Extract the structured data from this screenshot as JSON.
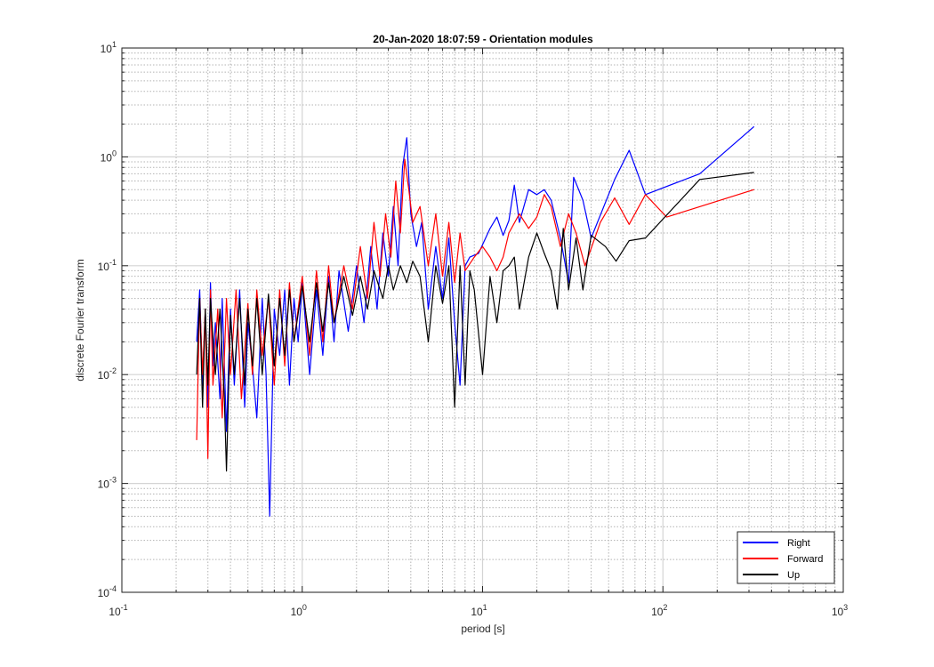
{
  "chart_data": {
    "type": "line",
    "title": "20-Jan-2020 18:07:59 - Orientation modules",
    "xlabel": "period [s]",
    "ylabel": "discrete Fourier transform",
    "xscale": "log",
    "yscale": "log",
    "xlim": [
      0.1,
      1000
    ],
    "ylim": [
      0.0001,
      10
    ],
    "grid": "on (major and minor)",
    "legend_position": "bottom-right",
    "x_ticks": [
      {
        "base": "10",
        "exp": "-1"
      },
      {
        "base": "10",
        "exp": "0"
      },
      {
        "base": "10",
        "exp": "1"
      },
      {
        "base": "10",
        "exp": "2"
      },
      {
        "base": "10",
        "exp": "3"
      }
    ],
    "y_ticks": [
      {
        "base": "10",
        "exp": "-4"
      },
      {
        "base": "10",
        "exp": "-3"
      },
      {
        "base": "10",
        "exp": "-2"
      },
      {
        "base": "10",
        "exp": "-1"
      },
      {
        "base": "10",
        "exp": "0"
      },
      {
        "base": "10",
        "exp": "1"
      }
    ],
    "series": [
      {
        "name": "Right",
        "color": "#0000ff",
        "points": [
          [
            0.26,
            0.02
          ],
          [
            0.27,
            0.06
          ],
          [
            0.28,
            0.008
          ],
          [
            0.29,
            0.04
          ],
          [
            0.3,
            0.005
          ],
          [
            0.31,
            0.07
          ],
          [
            0.32,
            0.012
          ],
          [
            0.33,
            0.03
          ],
          [
            0.35,
            0.006
          ],
          [
            0.36,
            0.05
          ],
          [
            0.38,
            0.003
          ],
          [
            0.4,
            0.04
          ],
          [
            0.42,
            0.008
          ],
          [
            0.45,
            0.06
          ],
          [
            0.48,
            0.005
          ],
          [
            0.5,
            0.03
          ],
          [
            0.53,
            0.012
          ],
          [
            0.56,
            0.004
          ],
          [
            0.6,
            0.05
          ],
          [
            0.63,
            0.01
          ],
          [
            0.66,
            0.0005
          ],
          [
            0.7,
            0.04
          ],
          [
            0.75,
            0.015
          ],
          [
            0.8,
            0.06
          ],
          [
            0.85,
            0.008
          ],
          [
            0.9,
            0.05
          ],
          [
            0.95,
            0.02
          ],
          [
            1.0,
            0.07
          ],
          [
            1.1,
            0.01
          ],
          [
            1.2,
            0.06
          ],
          [
            1.3,
            0.015
          ],
          [
            1.4,
            0.08
          ],
          [
            1.5,
            0.02
          ],
          [
            1.6,
            0.09
          ],
          [
            1.8,
            0.025
          ],
          [
            2.0,
            0.1
          ],
          [
            2.2,
            0.03
          ],
          [
            2.4,
            0.15
          ],
          [
            2.6,
            0.04
          ],
          [
            2.8,
            0.2
          ],
          [
            3.0,
            0.08
          ],
          [
            3.2,
            0.35
          ],
          [
            3.4,
            0.1
          ],
          [
            3.6,
            0.8
          ],
          [
            3.8,
            1.5
          ],
          [
            4.0,
            0.3
          ],
          [
            4.3,
            0.15
          ],
          [
            4.6,
            0.25
          ],
          [
            5.0,
            0.04
          ],
          [
            5.5,
            0.15
          ],
          [
            6.0,
            0.05
          ],
          [
            6.5,
            0.18
          ],
          [
            7.0,
            0.03
          ],
          [
            7.5,
            0.008
          ],
          [
            8.0,
            0.1
          ],
          [
            8.5,
            0.12
          ],
          [
            9.5,
            0.13
          ],
          [
            11,
            0.22
          ],
          [
            12,
            0.28
          ],
          [
            13,
            0.19
          ],
          [
            14,
            0.26
          ],
          [
            15,
            0.55
          ],
          [
            16,
            0.25
          ],
          [
            18,
            0.5
          ],
          [
            20,
            0.45
          ],
          [
            22,
            0.5
          ],
          [
            24,
            0.4
          ],
          [
            27,
            0.18
          ],
          [
            30,
            0.07
          ],
          [
            32,
            0.65
          ],
          [
            36,
            0.4
          ],
          [
            40,
            0.18
          ],
          [
            54,
            0.62
          ],
          [
            65,
            1.15
          ],
          [
            80,
            0.45
          ],
          [
            160,
            0.7
          ],
          [
            320,
            1.9
          ]
        ]
      },
      {
        "name": "Forward",
        "color": "#ff0000",
        "points": [
          [
            0.26,
            0.0025
          ],
          [
            0.27,
            0.05
          ],
          [
            0.28,
            0.01
          ],
          [
            0.29,
            0.04
          ],
          [
            0.3,
            0.0017
          ],
          [
            0.31,
            0.06
          ],
          [
            0.32,
            0.008
          ],
          [
            0.34,
            0.04
          ],
          [
            0.36,
            0.004
          ],
          [
            0.38,
            0.05
          ],
          [
            0.4,
            0.01
          ],
          [
            0.43,
            0.06
          ],
          [
            0.46,
            0.006
          ],
          [
            0.5,
            0.045
          ],
          [
            0.53,
            0.01
          ],
          [
            0.56,
            0.06
          ],
          [
            0.6,
            0.015
          ],
          [
            0.65,
            0.05
          ],
          [
            0.7,
            0.008
          ],
          [
            0.75,
            0.06
          ],
          [
            0.8,
            0.012
          ],
          [
            0.85,
            0.07
          ],
          [
            0.9,
            0.02
          ],
          [
            1.0,
            0.08
          ],
          [
            1.1,
            0.015
          ],
          [
            1.2,
            0.09
          ],
          [
            1.3,
            0.02
          ],
          [
            1.4,
            0.1
          ],
          [
            1.5,
            0.03
          ],
          [
            1.7,
            0.1
          ],
          [
            1.9,
            0.04
          ],
          [
            2.1,
            0.15
          ],
          [
            2.3,
            0.05
          ],
          [
            2.5,
            0.25
          ],
          [
            2.7,
            0.08
          ],
          [
            2.9,
            0.3
          ],
          [
            3.1,
            0.12
          ],
          [
            3.3,
            0.6
          ],
          [
            3.5,
            0.2
          ],
          [
            3.7,
            0.95
          ],
          [
            3.9,
            0.5
          ],
          [
            4.1,
            0.25
          ],
          [
            4.5,
            0.35
          ],
          [
            5.0,
            0.1
          ],
          [
            5.5,
            0.3
          ],
          [
            6.0,
            0.08
          ],
          [
            6.5,
            0.25
          ],
          [
            7.0,
            0.07
          ],
          [
            7.5,
            0.2
          ],
          [
            8.0,
            0.09
          ],
          [
            9,
            0.12
          ],
          [
            10,
            0.15
          ],
          [
            11,
            0.12
          ],
          [
            12,
            0.09
          ],
          [
            13,
            0.12
          ],
          [
            14,
            0.2
          ],
          [
            16,
            0.3
          ],
          [
            18,
            0.22
          ],
          [
            20,
            0.28
          ],
          [
            22,
            0.45
          ],
          [
            24,
            0.35
          ],
          [
            27,
            0.15
          ],
          [
            30,
            0.3
          ],
          [
            33,
            0.2
          ],
          [
            37,
            0.1
          ],
          [
            45,
            0.25
          ],
          [
            54,
            0.42
          ],
          [
            65,
            0.24
          ],
          [
            80,
            0.45
          ],
          [
            105,
            0.28
          ],
          [
            320,
            0.5
          ]
        ]
      },
      {
        "name": "Up",
        "color": "#000000",
        "points": [
          [
            0.26,
            0.01
          ],
          [
            0.27,
            0.05
          ],
          [
            0.28,
            0.005
          ],
          [
            0.29,
            0.04
          ],
          [
            0.3,
            0.008
          ],
          [
            0.31,
            0.05
          ],
          [
            0.33,
            0.01
          ],
          [
            0.35,
            0.04
          ],
          [
            0.37,
            0.006
          ],
          [
            0.38,
            0.0013
          ],
          [
            0.4,
            0.035
          ],
          [
            0.42,
            0.01
          ],
          [
            0.45,
            0.05
          ],
          [
            0.48,
            0.008
          ],
          [
            0.5,
            0.04
          ],
          [
            0.53,
            0.012
          ],
          [
            0.56,
            0.05
          ],
          [
            0.6,
            0.01
          ],
          [
            0.65,
            0.055
          ],
          [
            0.7,
            0.012
          ],
          [
            0.75,
            0.05
          ],
          [
            0.8,
            0.015
          ],
          [
            0.85,
            0.06
          ],
          [
            0.9,
            0.02
          ],
          [
            1.0,
            0.065
          ],
          [
            1.1,
            0.02
          ],
          [
            1.2,
            0.07
          ],
          [
            1.3,
            0.025
          ],
          [
            1.4,
            0.07
          ],
          [
            1.5,
            0.03
          ],
          [
            1.7,
            0.08
          ],
          [
            1.9,
            0.035
          ],
          [
            2.1,
            0.08
          ],
          [
            2.3,
            0.04
          ],
          [
            2.5,
            0.09
          ],
          [
            2.8,
            0.05
          ],
          [
            3.0,
            0.1
          ],
          [
            3.2,
            0.06
          ],
          [
            3.5,
            0.1
          ],
          [
            3.8,
            0.07
          ],
          [
            4.1,
            0.11
          ],
          [
            4.5,
            0.08
          ],
          [
            5.0,
            0.02
          ],
          [
            5.5,
            0.1
          ],
          [
            6.0,
            0.045
          ],
          [
            6.5,
            0.1
          ],
          [
            7.0,
            0.005
          ],
          [
            7.5,
            0.1
          ],
          [
            8.0,
            0.008
          ],
          [
            8.5,
            0.09
          ],
          [
            9,
            0.06
          ],
          [
            10,
            0.01
          ],
          [
            11,
            0.08
          ],
          [
            12,
            0.03
          ],
          [
            13,
            0.09
          ],
          [
            14,
            0.1
          ],
          [
            15,
            0.12
          ],
          [
            16,
            0.04
          ],
          [
            18,
            0.12
          ],
          [
            20,
            0.2
          ],
          [
            22,
            0.13
          ],
          [
            24,
            0.09
          ],
          [
            26,
            0.04
          ],
          [
            28,
            0.22
          ],
          [
            30,
            0.06
          ],
          [
            33,
            0.18
          ],
          [
            36,
            0.06
          ],
          [
            40,
            0.19
          ],
          [
            48,
            0.15
          ],
          [
            55,
            0.11
          ],
          [
            65,
            0.17
          ],
          [
            80,
            0.18
          ],
          [
            160,
            0.62
          ],
          [
            320,
            0.72
          ]
        ]
      }
    ]
  }
}
